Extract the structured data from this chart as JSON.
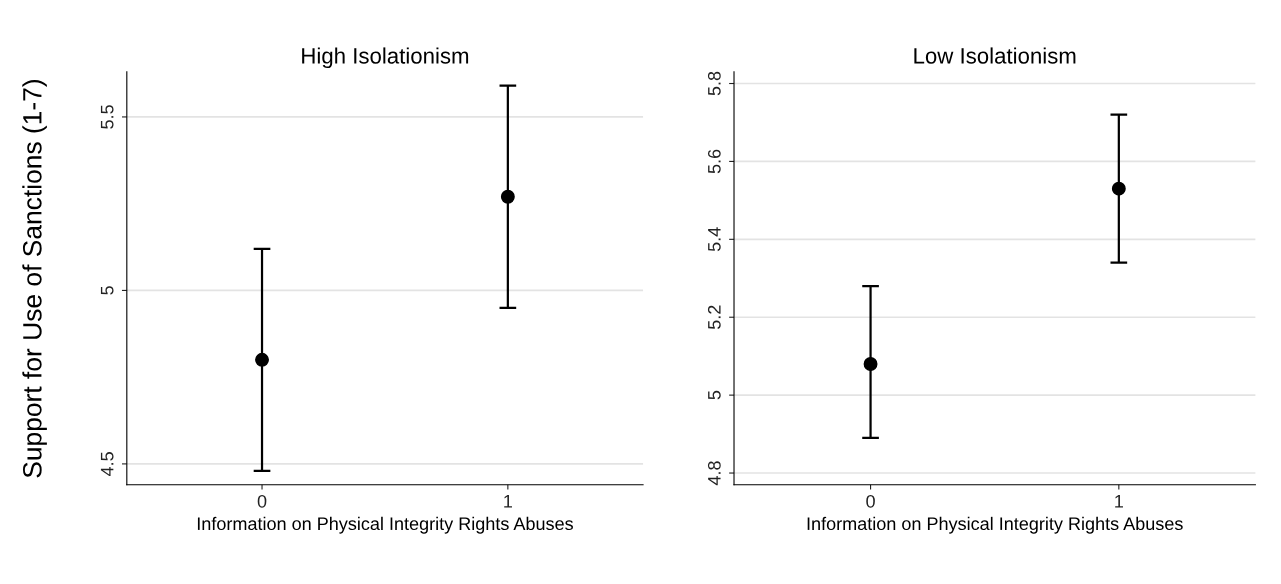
{
  "chart_data": [
    {
      "type": "scatter",
      "title": "High Isolationism",
      "xlabel": "Information on Physical Integrity Rights Abuses",
      "ylabel": "Support for Use of Sanctions (1-7)",
      "categories": [
        "0",
        "1"
      ],
      "values": [
        4.8,
        5.27
      ],
      "errors": [
        [
          4.48,
          5.12
        ],
        [
          4.95,
          5.59
        ]
      ],
      "color": "#000000",
      "ylim": [
        4.44,
        5.63
      ],
      "yticks": [
        4.5,
        5,
        5.5
      ],
      "grid": "y",
      "marker": "circle"
    },
    {
      "type": "scatter",
      "title": "Low Isolationism",
      "xlabel": "Information on Physical Integrity Rights Abuses",
      "categories": [
        "0",
        "1"
      ],
      "values": [
        5.08,
        5.53
      ],
      "errors": [
        [
          4.89,
          5.28
        ],
        [
          5.34,
          5.72
        ]
      ],
      "color": "#000000",
      "ylim": [
        4.77,
        5.83
      ],
      "yticks": [
        4.8,
        5,
        5.2,
        5.4,
        5.6,
        5.8
      ],
      "grid": "y",
      "marker": "circle"
    }
  ]
}
